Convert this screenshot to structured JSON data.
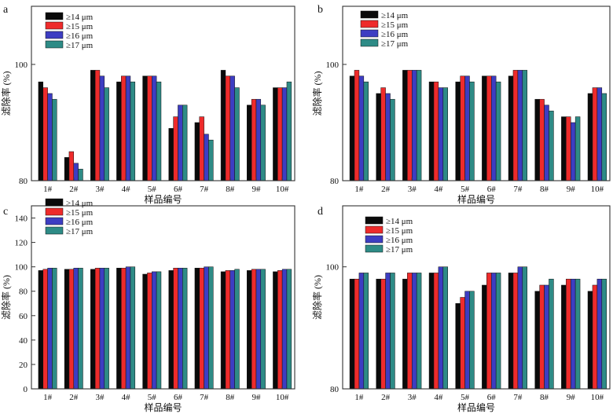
{
  "colors": {
    "s1": "#0a0a0a",
    "s2": "#ee2b2b",
    "s3": "#3d3dc2",
    "s4": "#2e8b86",
    "axis": "#333333"
  },
  "chart_data": [
    {
      "panel": "a",
      "type": "bar",
      "xlabel": "样品编号",
      "ylabel": "滤除率 (%)",
      "ylim": [
        80,
        110
      ],
      "yticks": [
        80,
        100
      ],
      "categories": [
        "1#",
        "2#",
        "3#",
        "4#",
        "5#",
        "6#",
        "7#",
        "8#",
        "9#",
        "10#"
      ],
      "legend": [
        "≥14 μm",
        "≥15 μm",
        "≥16 μm",
        "≥17 μm"
      ],
      "series": [
        {
          "name": "≥14 μm",
          "values": [
            97,
            84,
            99,
            97,
            98,
            89,
            90,
            99,
            93,
            96
          ]
        },
        {
          "name": "≥15 μm",
          "values": [
            96,
            85,
            99,
            98,
            98,
            91,
            91,
            98,
            94,
            96
          ]
        },
        {
          "name": "≥16 μm",
          "values": [
            95,
            83,
            98,
            98,
            98,
            93,
            88,
            98,
            94,
            96
          ]
        },
        {
          "name": "≥17 μm",
          "values": [
            94,
            82,
            96,
            97,
            97,
            93,
            87,
            96,
            93,
            97
          ]
        }
      ]
    },
    {
      "panel": "b",
      "type": "bar",
      "xlabel": "样品编号",
      "ylabel": "滤除率 (%)",
      "ylim": [
        80,
        110
      ],
      "yticks": [
        80,
        100
      ],
      "categories": [
        "1#",
        "2#",
        "3#",
        "4#",
        "5#",
        "6#",
        "7#",
        "8#",
        "9#",
        "10#"
      ],
      "legend": [
        "≥14 μm",
        "≥15 μm",
        "≥16 μm",
        "≥17 μm"
      ],
      "series": [
        {
          "name": "≥14 μm",
          "values": [
            98,
            95,
            99,
            97,
            97,
            98,
            98,
            94,
            91,
            95
          ]
        },
        {
          "name": "≥15 μm",
          "values": [
            99,
            96,
            99,
            97,
            98,
            98,
            99,
            94,
            91,
            96
          ]
        },
        {
          "name": "≥16 μm",
          "values": [
            98,
            95,
            99,
            96,
            98,
            98,
            99,
            93,
            90,
            96
          ]
        },
        {
          "name": "≥17 μm",
          "values": [
            97,
            94,
            99,
            96,
            97,
            97,
            99,
            92,
            91,
            95
          ]
        }
      ]
    },
    {
      "panel": "c",
      "type": "bar",
      "xlabel": "样品编号",
      "ylabel": "滤除率 (%)",
      "ylim": [
        0,
        150
      ],
      "yticks": [
        0,
        20,
        40,
        60,
        80,
        100,
        120,
        140
      ],
      "categories": [
        "1#",
        "2#",
        "3#",
        "4#",
        "5#",
        "6#",
        "7#",
        "8#",
        "9#",
        "10#"
      ],
      "legend": [
        "≥14 μm",
        "≥15 μm",
        "≥16 μm",
        "≥17 μm"
      ],
      "series": [
        {
          "name": "≥14 μm",
          "values": [
            97,
            98,
            98,
            99,
            94,
            97,
            99,
            96,
            97,
            96
          ]
        },
        {
          "name": "≥15 μm",
          "values": [
            98,
            98,
            99,
            99,
            95,
            99,
            99,
            97,
            98,
            97
          ]
        },
        {
          "name": "≥16 μm",
          "values": [
            99,
            99,
            99,
            100,
            96,
            99,
            100,
            97,
            98,
            98
          ]
        },
        {
          "name": "≥17 μm",
          "values": [
            99,
            99,
            99,
            100,
            96,
            99,
            100,
            98,
            98,
            98
          ]
        }
      ]
    },
    {
      "panel": "d",
      "type": "bar",
      "xlabel": "样品编号",
      "ylabel": "滤除率 (%)",
      "ylim": [
        80,
        110
      ],
      "yticks": [
        80,
        100
      ],
      "categories": [
        "1#",
        "2#",
        "3#",
        "4#",
        "5#",
        "6#",
        "7#",
        "8#",
        "9#",
        "10#"
      ],
      "legend": [
        "≥14 μm",
        "≥15 μm",
        "≥16 μm",
        "≥17 μm"
      ],
      "series": [
        {
          "name": "≥14 μm",
          "values": [
            98,
            98,
            98,
            99,
            94,
            97,
            99,
            96,
            97,
            96
          ]
        },
        {
          "name": "≥15 μm",
          "values": [
            98,
            98,
            99,
            99,
            95,
            99,
            99,
            97,
            98,
            97
          ]
        },
        {
          "name": "≥16 μm",
          "values": [
            99,
            99,
            99,
            100,
            96,
            99,
            100,
            97,
            98,
            98
          ]
        },
        {
          "name": "≥17 μm",
          "values": [
            99,
            99,
            99,
            100,
            96,
            99,
            100,
            98,
            98,
            98
          ]
        }
      ]
    }
  ]
}
